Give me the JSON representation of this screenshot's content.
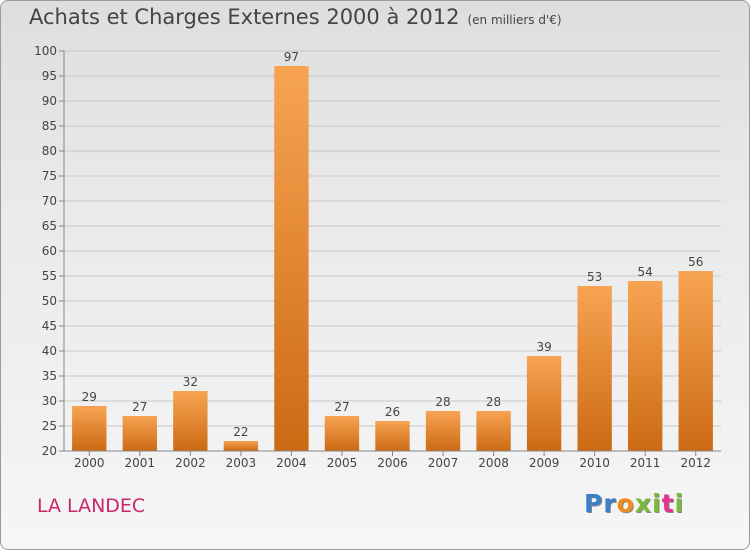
{
  "header": {
    "title": "Achats et Charges Externes 2000 à 2012",
    "unit": "(en milliers d'€)"
  },
  "footer": {
    "place": "LA LANDEC",
    "logo": "Proxiti",
    "logo_colors": [
      "#3a7fc7",
      "#3a7fc7",
      "#f08c1e",
      "#7cba3a",
      "#7cba3a",
      "#e6328c",
      "#7cba3a"
    ]
  },
  "chart_data": {
    "type": "bar",
    "title": "Achats et Charges Externes 2000 à 2012",
    "xlabel": "",
    "ylabel": "",
    "categories": [
      "2000",
      "2001",
      "2002",
      "2003",
      "2004",
      "2005",
      "2006",
      "2007",
      "2008",
      "2009",
      "2010",
      "2011",
      "2012"
    ],
    "values": [
      29,
      27,
      32,
      22,
      97,
      27,
      26,
      28,
      28,
      39,
      53,
      54,
      56
    ],
    "ylim": [
      20,
      100
    ],
    "yticks": [
      20,
      25,
      30,
      35,
      40,
      45,
      50,
      55,
      60,
      65,
      70,
      75,
      80,
      85,
      90,
      95,
      100
    ],
    "grid": true,
    "bar_color_light": "#f7a452",
    "bar_color_dark": "#cc6a14"
  }
}
